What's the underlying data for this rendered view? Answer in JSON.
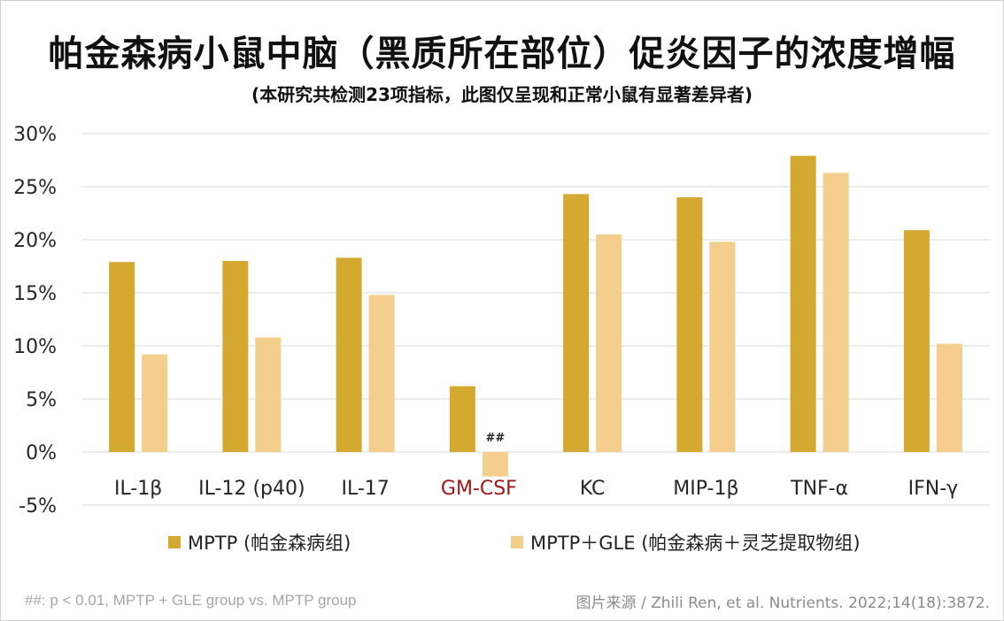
{
  "title": "帕金森病小鼠中脑（黑质所在部位）促炎因子的浓度增幅",
  "subtitle": "(本研究共检测23项指标，此图仅呈现和正常小鼠有显著差异者)",
  "colors": {
    "mptp": "#D4A92F",
    "mptp_gle": "#F3CE8C",
    "highlight_label": "#A31515",
    "grid": "#d9d9d9",
    "axis_text": "#262626"
  },
  "chart_data": {
    "type": "bar",
    "categories": [
      "IL-1β",
      "IL-12 (p40)",
      "IL-17",
      "GM-CSF",
      "KC",
      "MIP-1β",
      "TNF-α",
      "IFN-γ"
    ],
    "highlighted_category": "GM-CSF",
    "series": [
      {
        "name": "MPTP (帕金森病组)",
        "values": [
          17.9,
          18.0,
          18.3,
          6.2,
          24.3,
          24.0,
          27.9,
          20.9
        ]
      },
      {
        "name": "MPTP＋GLE (帕金森病＋灵芝提取物组)",
        "values": [
          9.2,
          10.8,
          14.8,
          -2.3,
          20.5,
          19.8,
          26.3,
          10.2
        ]
      }
    ],
    "annotations": [
      {
        "category": "GM-CSF",
        "series": 1,
        "text": "##"
      }
    ],
    "ylim": [
      -5,
      30
    ],
    "yticks": [
      "-5%",
      "0%",
      "5%",
      "10%",
      "15%",
      "20%",
      "25%",
      "30%"
    ],
    "ytick_values": [
      -5,
      0,
      5,
      10,
      15,
      20,
      25,
      30
    ],
    "grid": true,
    "legend_position": "bottom"
  },
  "footnote": "##: p < 0.01, MPTP + GLE group vs. MPTP group",
  "source": "图片来源 / Zhili Ren, et al. Nutrients. 2022;14(18):3872."
}
